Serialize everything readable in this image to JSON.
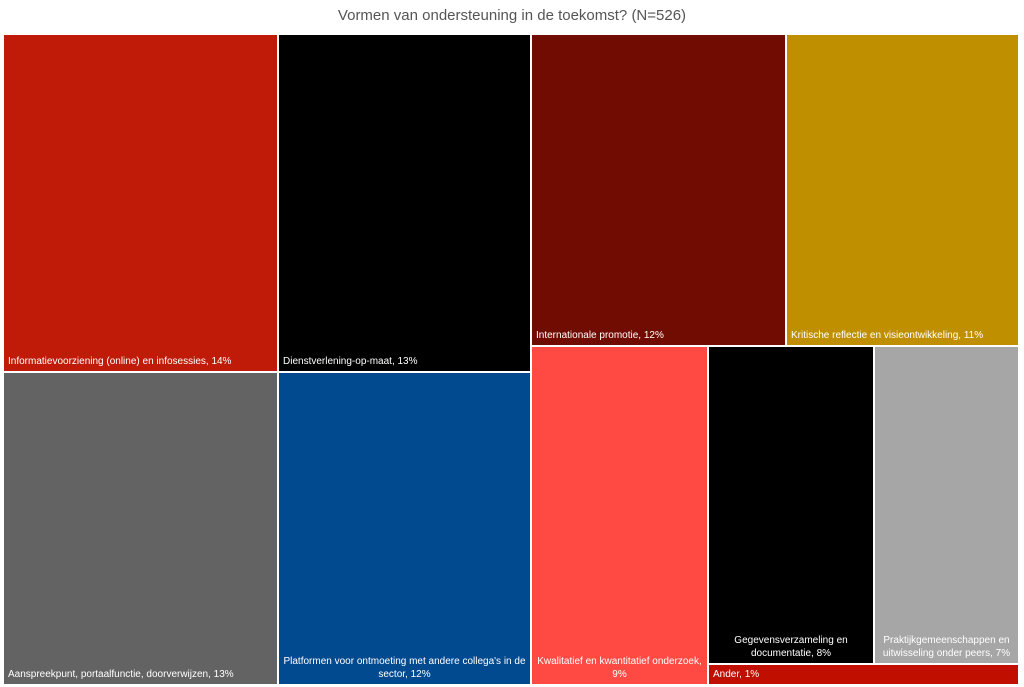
{
  "chart_data": {
    "type": "treemap",
    "title": "Vormen van ondersteuning in de toekomst? (N=526)",
    "labels": [
      "Informatievoorziening (online) en infosessies, 14%",
      "Dienstverlening-op-maat, 13%",
      "Internationale promotie, 12%",
      "Kritische reflectie en visieontwikkeling, 11%",
      "Aanspreekpunt, portaalfunctie, doorverwijzen, 13%",
      "Platformen voor ontmoeting met andere collega's in de sector, 12%",
      "Kwalitatief en kwantitatief onderzoek, 9%",
      "Gegevensverzameling en documentatie, 8%",
      "Praktijkgemeenschappen en uitwisseling onder peers, 7%",
      "Ander, 1%"
    ],
    "values": [
      14,
      13,
      12,
      11,
      13,
      12,
      9,
      8,
      7,
      1
    ],
    "colors": [
      "#c01a08",
      "#000000",
      "#710c02",
      "#bf8f00",
      "#636363",
      "#024a90",
      "#ff4a44",
      "#000000",
      "#a6a6a6",
      "#c00f00"
    ]
  }
}
